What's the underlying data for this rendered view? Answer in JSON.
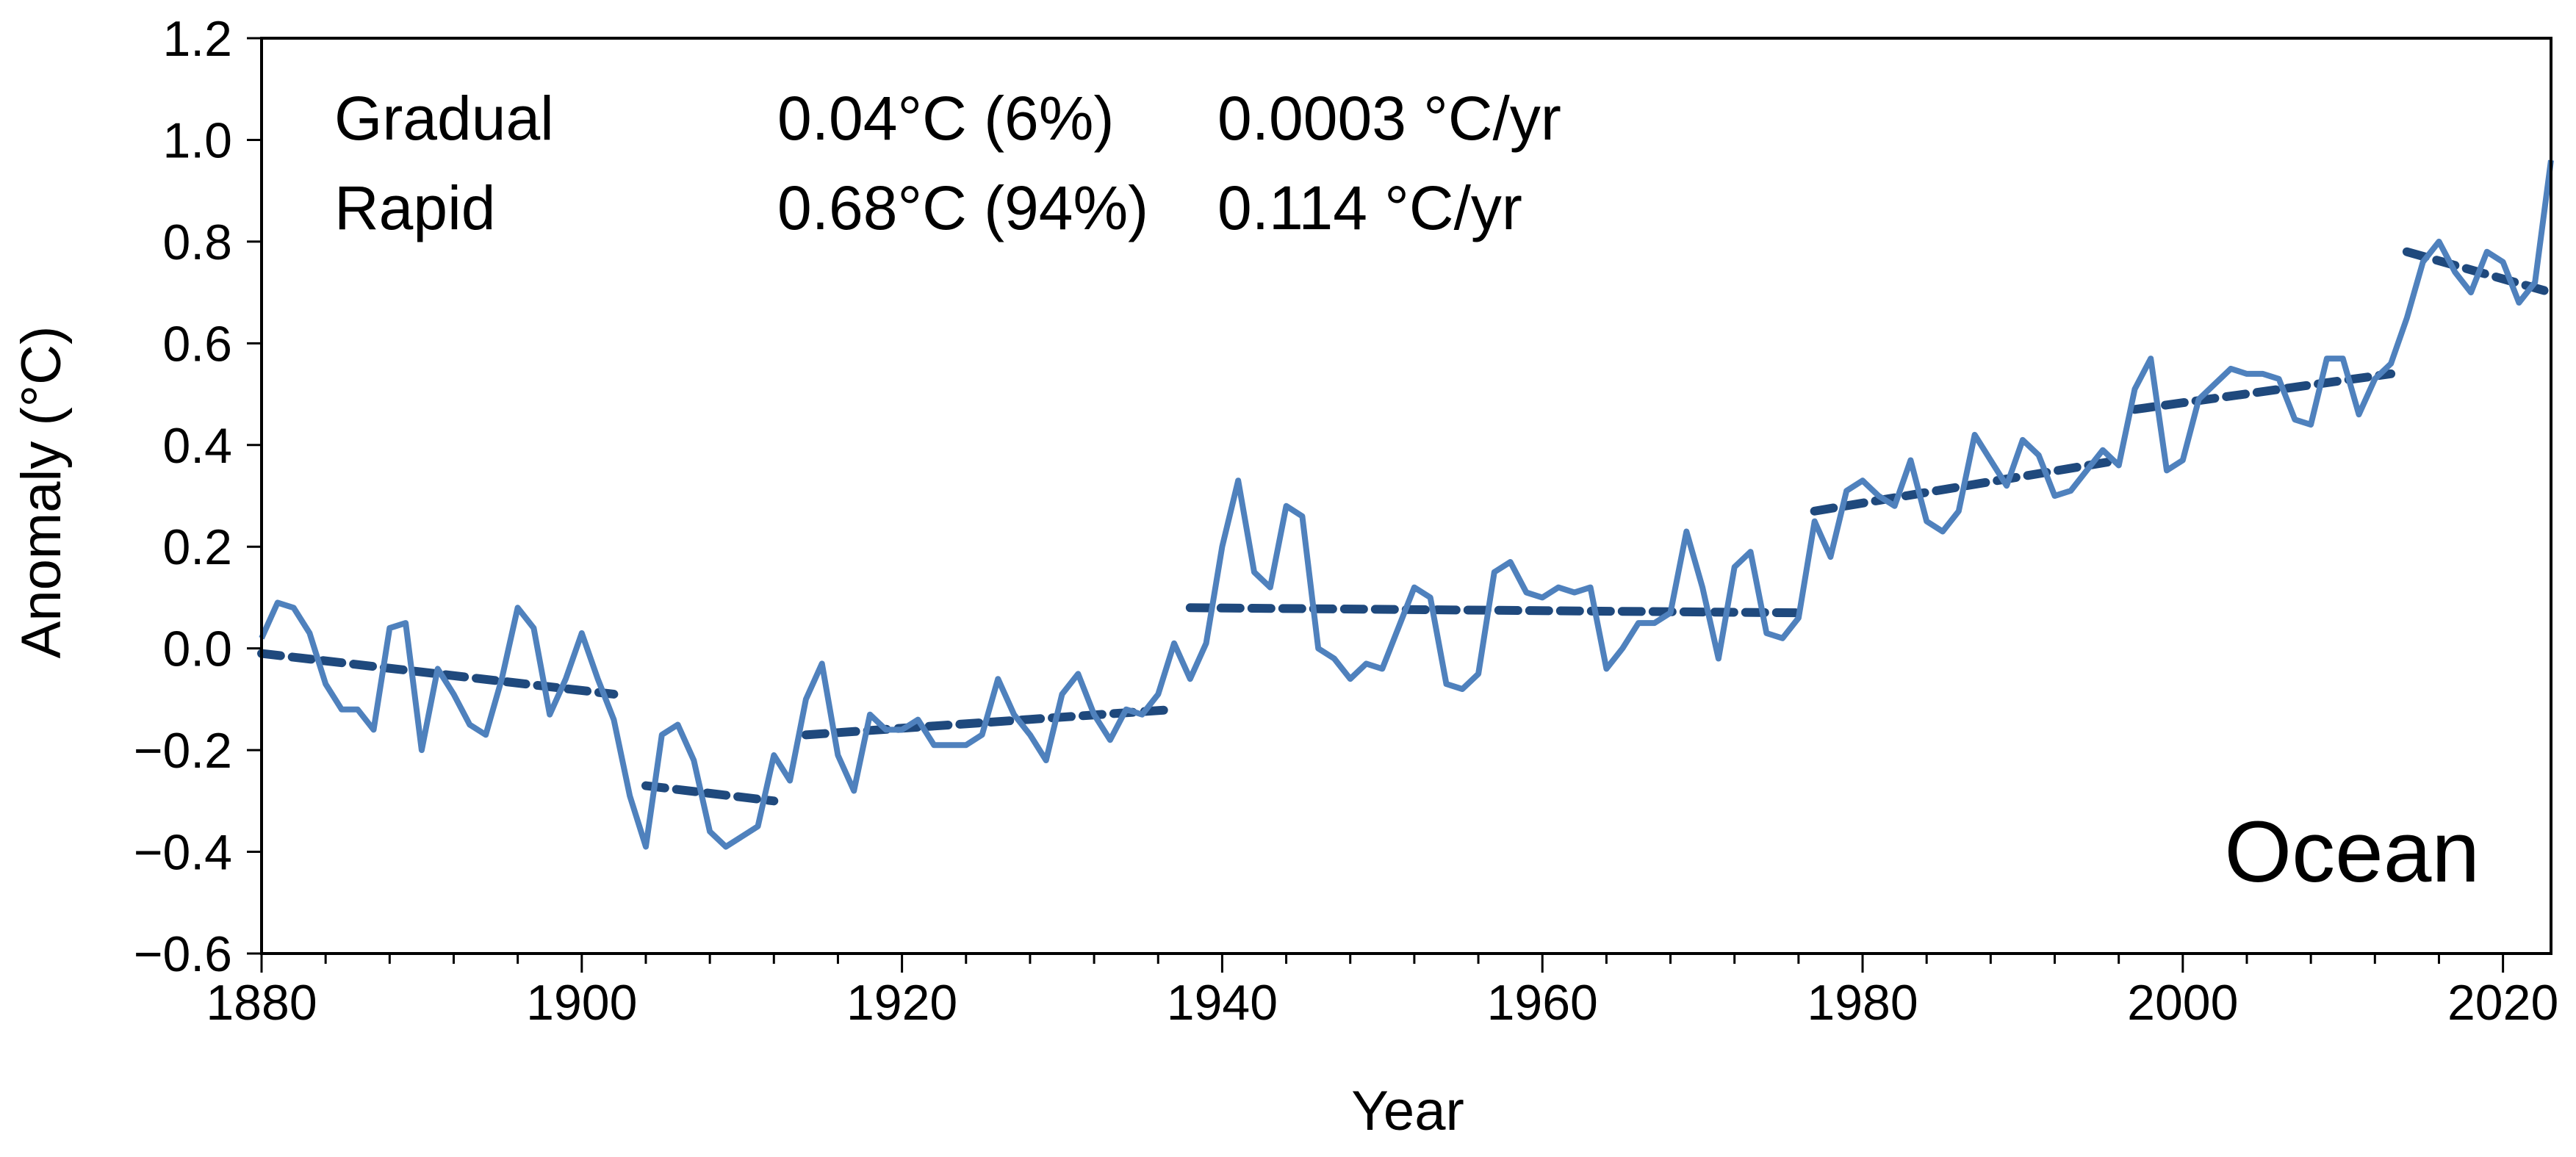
{
  "chart_data": {
    "type": "line",
    "panel_label": "Ocean",
    "xlabel": "Year",
    "ylabel": "Anomaly (°C)",
    "xlim": [
      1880,
      2023
    ],
    "ylim": [
      -0.6,
      1.2
    ],
    "x_ticks": [
      1880,
      1900,
      1920,
      1940,
      1960,
      1980,
      2000,
      2020
    ],
    "x_tick_labels": [
      "1880",
      "1900",
      "1920",
      "1940",
      "1960",
      "1980",
      "2000",
      "2020"
    ],
    "x_minor_step": 4,
    "y_ticks": [
      -0.6,
      -0.4,
      -0.2,
      0.0,
      0.2,
      0.4,
      0.6,
      0.8,
      1.0,
      1.2
    ],
    "y_tick_labels": [
      "−0.6",
      "−0.4",
      "−0.2",
      "0.0",
      "0.2",
      "0.4",
      "0.6",
      "0.8",
      "1.0",
      "1.2"
    ],
    "grid": false,
    "stats": [
      {
        "label": "Gradual",
        "change": "0.04°C (6%)",
        "rate": "0.0003 °C/yr"
      },
      {
        "label": "Rapid",
        "change": "0.68°C (94%)",
        "rate": "0.114 °C/yr"
      }
    ],
    "series": [
      {
        "name": "Ocean anomaly",
        "color": "#4f81bd",
        "x": [
          1880,
          1881,
          1882,
          1883,
          1884,
          1885,
          1886,
          1887,
          1888,
          1889,
          1890,
          1891,
          1892,
          1893,
          1894,
          1895,
          1896,
          1897,
          1898,
          1899,
          1900,
          1901,
          1902,
          1903,
          1904,
          1905,
          1906,
          1907,
          1908,
          1909,
          1910,
          1911,
          1912,
          1913,
          1914,
          1915,
          1916,
          1917,
          1918,
          1919,
          1920,
          1921,
          1922,
          1923,
          1924,
          1925,
          1926,
          1927,
          1928,
          1929,
          1930,
          1931,
          1932,
          1933,
          1934,
          1935,
          1936,
          1937,
          1938,
          1939,
          1940,
          1941,
          1942,
          1943,
          1944,
          1945,
          1946,
          1947,
          1948,
          1949,
          1950,
          1951,
          1952,
          1953,
          1954,
          1955,
          1956,
          1957,
          1958,
          1959,
          1960,
          1961,
          1962,
          1963,
          1964,
          1965,
          1966,
          1967,
          1968,
          1969,
          1970,
          1971,
          1972,
          1973,
          1974,
          1975,
          1976,
          1977,
          1978,
          1979,
          1980,
          1981,
          1982,
          1983,
          1984,
          1985,
          1986,
          1987,
          1988,
          1989,
          1990,
          1991,
          1992,
          1993,
          1994,
          1995,
          1996,
          1997,
          1998,
          1999,
          2000,
          2001,
          2002,
          2003,
          2004,
          2005,
          2006,
          2007,
          2008,
          2009,
          2010,
          2011,
          2012,
          2013,
          2014,
          2015,
          2016,
          2017,
          2018,
          2019,
          2020,
          2021,
          2022,
          2023
        ],
        "y": [
          0.02,
          0.09,
          0.08,
          0.03,
          -0.07,
          -0.12,
          -0.12,
          -0.16,
          0.04,
          0.05,
          -0.2,
          -0.04,
          -0.09,
          -0.15,
          -0.17,
          -0.06,
          0.08,
          0.04,
          -0.13,
          -0.06,
          0.03,
          -0.06,
          -0.14,
          -0.29,
          -0.39,
          -0.17,
          -0.15,
          -0.22,
          -0.36,
          -0.39,
          -0.37,
          -0.35,
          -0.21,
          -0.26,
          -0.1,
          -0.03,
          -0.21,
          -0.28,
          -0.13,
          -0.16,
          -0.16,
          -0.14,
          -0.19,
          -0.19,
          -0.19,
          -0.17,
          -0.06,
          -0.13,
          -0.17,
          -0.22,
          -0.09,
          -0.05,
          -0.13,
          -0.18,
          -0.12,
          -0.13,
          -0.09,
          0.01,
          -0.06,
          0.01,
          0.2,
          0.33,
          0.15,
          0.12,
          0.28,
          0.26,
          0.0,
          -0.02,
          -0.06,
          -0.03,
          -0.04,
          0.04,
          0.12,
          0.1,
          -0.07,
          -0.08,
          -0.05,
          0.15,
          0.17,
          0.11,
          0.1,
          0.12,
          0.11,
          0.12,
          -0.04,
          0.0,
          0.05,
          0.05,
          0.07,
          0.23,
          0.12,
          -0.02,
          0.16,
          0.19,
          0.03,
          0.02,
          0.06,
          0.25,
          0.18,
          0.31,
          0.33,
          0.3,
          0.28,
          0.37,
          0.25,
          0.23,
          0.27,
          0.42,
          0.37,
          0.32,
          0.41,
          0.38,
          0.3,
          0.31,
          0.35,
          0.39,
          0.36,
          0.51,
          0.57,
          0.35,
          0.37,
          0.49,
          0.52,
          0.55,
          0.54,
          0.54,
          0.53,
          0.45,
          0.44,
          0.57,
          0.57,
          0.46,
          0.53,
          0.56,
          0.65,
          0.76,
          0.8,
          0.74,
          0.7,
          0.78,
          0.76,
          0.68,
          0.72,
          0.96
        ]
      }
    ],
    "trend_segments": [
      {
        "x": [
          1880,
          1902
        ],
        "y": [
          -0.01,
          -0.09
        ]
      },
      {
        "x": [
          1904,
          1912
        ],
        "y": [
          -0.27,
          -0.3
        ]
      },
      {
        "x": [
          1914,
          1937
        ],
        "y": [
          -0.17,
          -0.12
        ]
      },
      {
        "x": [
          1938,
          1976
        ],
        "y": [
          0.08,
          0.07
        ]
      },
      {
        "x": [
          1977,
          1996
        ],
        "y": [
          0.27,
          0.37
        ]
      },
      {
        "x": [
          1997,
          2013
        ],
        "y": [
          0.47,
          0.54
        ]
      },
      {
        "x": [
          2014,
          2023
        ],
        "y": [
          0.78,
          0.7
        ]
      }
    ],
    "trend_color": "#1f497d"
  }
}
